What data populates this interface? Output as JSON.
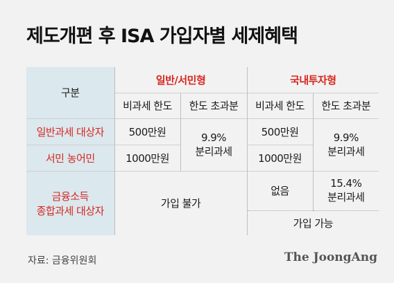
{
  "title": "제도개편 후 ISA 가입자별 세제혜택",
  "table": {
    "corner": "구분",
    "group1": "일반/서민형",
    "group2": "국내투자형",
    "sub_limit": "비과세 한도",
    "sub_excess": "한도 초과분",
    "row1_label": "일반과세 대상자",
    "row2_label": "서민 농어민",
    "row3_label_line1": "금융소득",
    "row3_label_line2": "종합과세 대상자",
    "g1_row1_limit": "500만원",
    "g1_row2_limit": "1000만원",
    "g1_excess_line1": "9.9%",
    "g1_excess_line2": "분리과세",
    "g1_row3": "가입 불가",
    "g2_row1_limit": "500만원",
    "g2_row2_limit": "1000만원",
    "g2_excess_line1": "9.9%",
    "g2_excess_line2": "분리과세",
    "g2_row3_limit": "없음",
    "g2_row3_excess_line1": "15.4%",
    "g2_row3_excess_line2": "분리과세",
    "g2_row3_note": "가입 가능"
  },
  "colors": {
    "header_bg": "#dbe8ee",
    "label_red": "#d7261e"
  },
  "source": "자료: 금융위원회",
  "logo": "The JoongAng"
}
